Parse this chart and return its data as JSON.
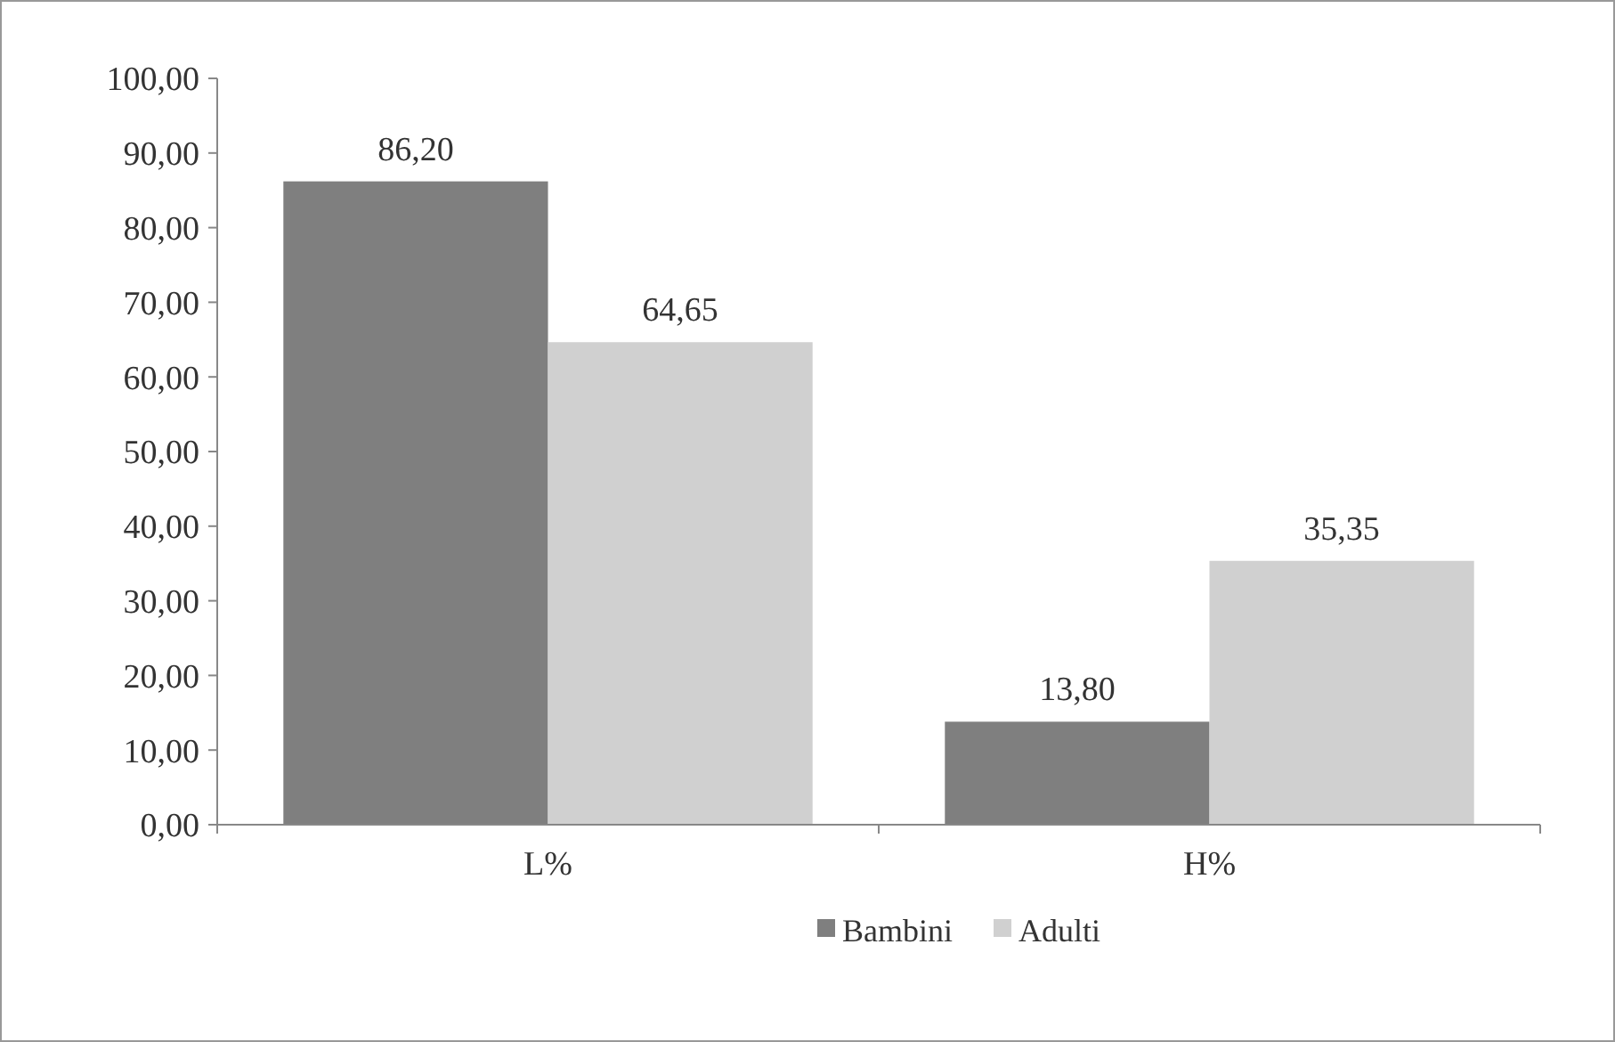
{
  "chart_data": {
    "type": "bar",
    "categories": [
      "L%",
      "H%"
    ],
    "series": [
      {
        "name": "Bambini",
        "color": "#7f7f7f",
        "values": [
          86.2,
          13.8
        ],
        "value_labels": [
          "86,20",
          "13,80"
        ]
      },
      {
        "name": "Adulti",
        "color": "#d0d0d0",
        "values": [
          64.65,
          35.35
        ],
        "value_labels": [
          "64,65",
          "35,35"
        ]
      }
    ],
    "ylim": [
      0,
      100
    ],
    "yticks": [
      {
        "value": 0,
        "label": "0,00"
      },
      {
        "value": 10,
        "label": "10,00"
      },
      {
        "value": 20,
        "label": "20,00"
      },
      {
        "value": 30,
        "label": "30,00"
      },
      {
        "value": 40,
        "label": "40,00"
      },
      {
        "value": 50,
        "label": "50,00"
      },
      {
        "value": 60,
        "label": "60,00"
      },
      {
        "value": 70,
        "label": "70,00"
      },
      {
        "value": 80,
        "label": "80,00"
      },
      {
        "value": 90,
        "label": "90,00"
      },
      {
        "value": 100,
        "label": "100,00"
      }
    ],
    "grid": false,
    "legend": "bottom"
  }
}
